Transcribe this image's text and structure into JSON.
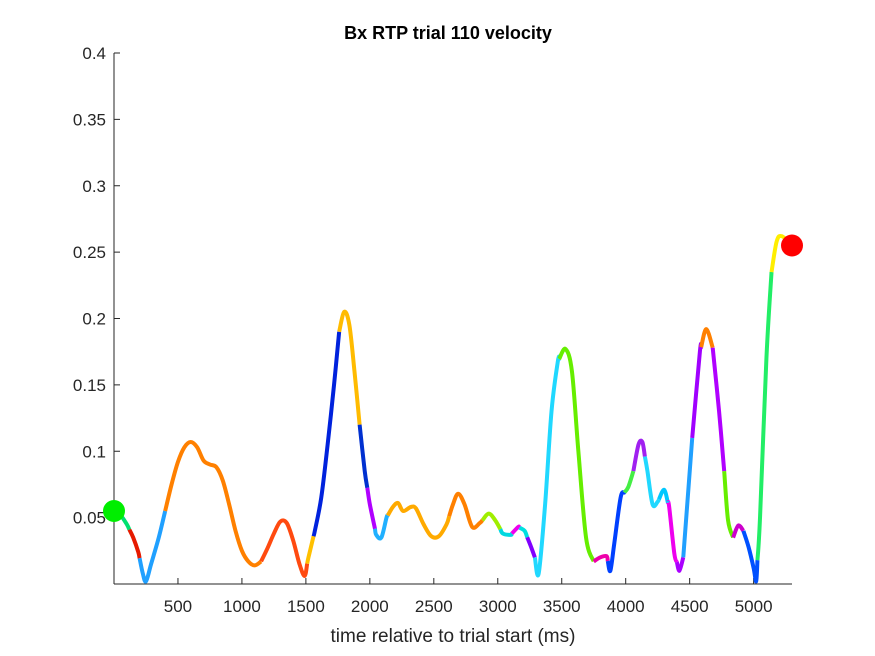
{
  "chart_data": {
    "type": "line",
    "title": "Bx  RTP trial 110 velocity",
    "xlabel": "time relative to trial start (ms)",
    "ylabel": "",
    "xlim": [
      0,
      5300
    ],
    "ylim": [
      0,
      0.4
    ],
    "x_ticks": [
      500,
      1000,
      1500,
      2000,
      2500,
      3000,
      3500,
      4000,
      4500,
      5000
    ],
    "x_tick_labels": [
      "500",
      "1000",
      "1500",
      "2000",
      "2500",
      "3000",
      "3500",
      "4000",
      "4500",
      "5000"
    ],
    "y_ticks": [
      0.05,
      0.1,
      0.15,
      0.2,
      0.25,
      0.3,
      0.35,
      0.4
    ],
    "y_tick_labels": [
      "0.05",
      "0.1",
      "0.15",
      "0.2",
      "0.25",
      "0.3",
      "0.35",
      "0.4"
    ],
    "grid": false,
    "start_marker": {
      "x": 0,
      "y": 0.055,
      "color": "#00ee00"
    },
    "end_marker": {
      "x": 5300,
      "y": 0.255,
      "color": "#ff0000"
    },
    "series": [
      {
        "points": [
          [
            0,
            0.055
          ],
          [
            50,
            0.052
          ],
          [
            100,
            0.045
          ],
          [
            150,
            0.035
          ],
          [
            190,
            0.024
          ],
          [
            225,
            0.008
          ],
          [
            250,
            0.002
          ],
          [
            290,
            0.015
          ],
          [
            350,
            0.035
          ],
          [
            400,
            0.055
          ],
          [
            450,
            0.075
          ],
          [
            500,
            0.092
          ],
          [
            550,
            0.103
          ],
          [
            600,
            0.107
          ],
          [
            650,
            0.103
          ],
          [
            700,
            0.093
          ],
          [
            750,
            0.09
          ],
          [
            800,
            0.088
          ],
          [
            850,
            0.078
          ],
          [
            900,
            0.06
          ],
          [
            950,
            0.04
          ],
          [
            1000,
            0.025
          ],
          [
            1050,
            0.017
          ],
          [
            1100,
            0.014
          ],
          [
            1150,
            0.017
          ],
          [
            1200,
            0.027
          ],
          [
            1250,
            0.038
          ],
          [
            1300,
            0.047
          ],
          [
            1350,
            0.046
          ],
          [
            1400,
            0.033
          ],
          [
            1450,
            0.015
          ],
          [
            1490,
            0.006
          ],
          [
            1520,
            0.02
          ],
          [
            1570,
            0.04
          ],
          [
            1620,
            0.065
          ],
          [
            1670,
            0.105
          ],
          [
            1720,
            0.15
          ],
          [
            1760,
            0.19
          ],
          [
            1800,
            0.205
          ],
          [
            1840,
            0.195
          ],
          [
            1880,
            0.16
          ],
          [
            1920,
            0.12
          ],
          [
            1960,
            0.085
          ],
          [
            2000,
            0.06
          ],
          [
            2050,
            0.037
          ],
          [
            2090,
            0.035
          ],
          [
            2130,
            0.05
          ],
          [
            2180,
            0.058
          ],
          [
            2220,
            0.061
          ],
          [
            2260,
            0.055
          ],
          [
            2320,
            0.058
          ],
          [
            2360,
            0.057
          ],
          [
            2420,
            0.045
          ],
          [
            2480,
            0.036
          ],
          [
            2540,
            0.036
          ],
          [
            2600,
            0.045
          ],
          [
            2650,
            0.06
          ],
          [
            2690,
            0.068
          ],
          [
            2740,
            0.06
          ],
          [
            2800,
            0.043
          ],
          [
            2860,
            0.046
          ],
          [
            2930,
            0.053
          ],
          [
            2980,
            0.048
          ],
          [
            3040,
            0.038
          ],
          [
            3100,
            0.037
          ],
          [
            3160,
            0.043
          ],
          [
            3210,
            0.04
          ],
          [
            3260,
            0.028
          ],
          [
            3290,
            0.02
          ],
          [
            3320,
            0.008
          ],
          [
            3370,
            0.06
          ],
          [
            3420,
            0.13
          ],
          [
            3470,
            0.168
          ],
          [
            3530,
            0.177
          ],
          [
            3580,
            0.16
          ],
          [
            3630,
            0.1
          ],
          [
            3690,
            0.035
          ],
          [
            3750,
            0.017
          ],
          [
            3800,
            0.02
          ],
          [
            3850,
            0.021
          ],
          [
            3880,
            0.01
          ],
          [
            3910,
            0.03
          ],
          [
            3960,
            0.065
          ],
          [
            4020,
            0.073
          ],
          [
            4060,
            0.085
          ],
          [
            4100,
            0.105
          ],
          [
            4130,
            0.107
          ],
          [
            4170,
            0.085
          ],
          [
            4210,
            0.06
          ],
          [
            4250,
            0.062
          ],
          [
            4300,
            0.071
          ],
          [
            4340,
            0.058
          ],
          [
            4380,
            0.023
          ],
          [
            4420,
            0.01
          ],
          [
            4450,
            0.02
          ],
          [
            4520,
            0.11
          ],
          [
            4580,
            0.175
          ],
          [
            4630,
            0.192
          ],
          [
            4680,
            0.178
          ],
          [
            4730,
            0.13
          ],
          [
            4770,
            0.085
          ],
          [
            4800,
            0.048
          ],
          [
            4840,
            0.035
          ],
          [
            4880,
            0.044
          ],
          [
            4920,
            0.04
          ],
          [
            4960,
            0.028
          ],
          [
            5000,
            0.012
          ],
          [
            5020,
            0.002
          ],
          [
            5050,
            0.05
          ],
          [
            5100,
            0.17
          ],
          [
            5140,
            0.235
          ],
          [
            5180,
            0.258
          ],
          [
            5220,
            0.262
          ],
          [
            5300,
            0.255
          ]
        ],
        "segments": [
          {
            "from": 0,
            "to": 120,
            "color": "#00e070"
          },
          {
            "from": 120,
            "to": 200,
            "color": "#e61a00"
          },
          {
            "from": 200,
            "to": 400,
            "color": "#20a0ff"
          },
          {
            "from": 400,
            "to": 1150,
            "color": "#ff8000"
          },
          {
            "from": 1150,
            "to": 1510,
            "color": "#ff4a10"
          },
          {
            "from": 1510,
            "to": 1560,
            "color": "#ffc000"
          },
          {
            "from": 1560,
            "to": 1760,
            "color": "#0022dd"
          },
          {
            "from": 1760,
            "to": 1920,
            "color": "#ffbb00"
          },
          {
            "from": 1920,
            "to": 1980,
            "color": "#0030d0"
          },
          {
            "from": 1980,
            "to": 2040,
            "color": "#b000ff"
          },
          {
            "from": 2040,
            "to": 2140,
            "color": "#20b0ff"
          },
          {
            "from": 2140,
            "to": 2620,
            "color": "#ffaa00"
          },
          {
            "from": 2620,
            "to": 2880,
            "color": "#ff8000"
          },
          {
            "from": 2880,
            "to": 3020,
            "color": "#a0ee00"
          },
          {
            "from": 3020,
            "to": 3110,
            "color": "#00d8e0"
          },
          {
            "from": 3110,
            "to": 3170,
            "color": "#ee00ee"
          },
          {
            "from": 3170,
            "to": 3230,
            "color": "#00e0e0"
          },
          {
            "from": 3230,
            "to": 3290,
            "color": "#8000ff"
          },
          {
            "from": 3290,
            "to": 3480,
            "color": "#20d8ff"
          },
          {
            "from": 3480,
            "to": 3750,
            "color": "#66ee00"
          },
          {
            "from": 3750,
            "to": 3860,
            "color": "#ee00aa"
          },
          {
            "from": 3860,
            "to": 3990,
            "color": "#0040ff"
          },
          {
            "from": 3990,
            "to": 4060,
            "color": "#44ee44"
          },
          {
            "from": 4060,
            "to": 4150,
            "color": "#a020f0"
          },
          {
            "from": 4150,
            "to": 4260,
            "color": "#20d8ff"
          },
          {
            "from": 4260,
            "to": 4330,
            "color": "#00c8ff"
          },
          {
            "from": 4330,
            "to": 4400,
            "color": "#ee00ee"
          },
          {
            "from": 4400,
            "to": 4450,
            "color": "#aa00ff"
          },
          {
            "from": 4450,
            "to": 4520,
            "color": "#20a0ff"
          },
          {
            "from": 4520,
            "to": 4590,
            "color": "#a000ff"
          },
          {
            "from": 4590,
            "to": 4680,
            "color": "#ff8000"
          },
          {
            "from": 4680,
            "to": 4770,
            "color": "#b000ff"
          },
          {
            "from": 4770,
            "to": 4840,
            "color": "#66ee00"
          },
          {
            "from": 4840,
            "to": 4920,
            "color": "#cc00cc"
          },
          {
            "from": 4920,
            "to": 5030,
            "color": "#0050ff"
          },
          {
            "from": 5030,
            "to": 5140,
            "color": "#22ee66"
          },
          {
            "from": 5140,
            "to": 5300,
            "color": "#ffee00"
          }
        ]
      }
    ]
  }
}
